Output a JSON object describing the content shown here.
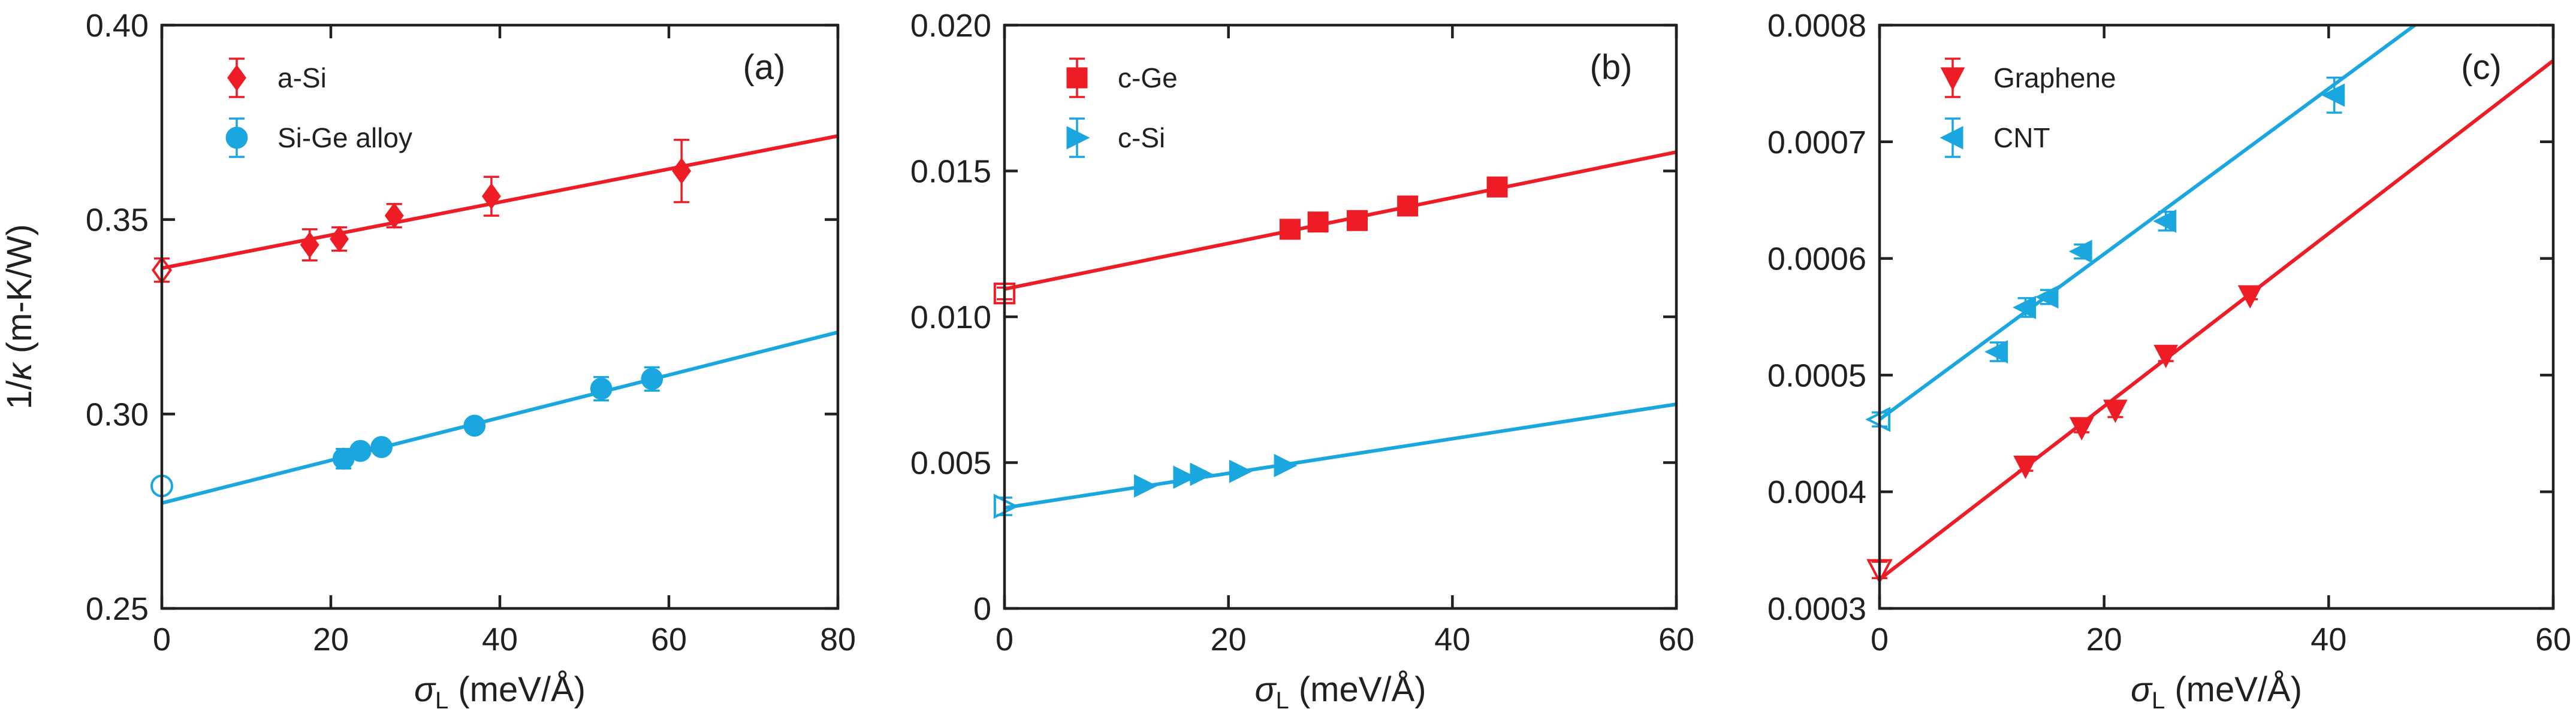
{
  "colors": {
    "red": "#ee1c25",
    "blue": "#1aa7e0",
    "axis": "#231f20"
  },
  "chart_data": [
    {
      "type": "scatter",
      "panel_label": "(a)",
      "xlabel_symbol": "σ",
      "xlabel_sub": "L",
      "xlabel_unit": " (meV/Å)",
      "ylabel_prefix": "1/",
      "ylabel_symbol": "κ",
      "ylabel_unit": " (m-K/W)",
      "xlim": [
        0,
        80
      ],
      "ylim": [
        0.25,
        0.4
      ],
      "xticks": [
        0,
        20,
        40,
        60,
        80
      ],
      "xtick_labels": [
        "0",
        "20",
        "40",
        "60",
        "80"
      ],
      "yticks": [
        0.25,
        0.3,
        0.35,
        0.4
      ],
      "ytick_labels": [
        "0.25",
        "0.30",
        "0.35",
        "0.40"
      ],
      "legend_position": "top-left",
      "series": [
        {
          "name": "a-Si",
          "color": "red",
          "marker": "diamond",
          "x": [
            17.5,
            21,
            27.5,
            39,
            61.5
          ],
          "y": [
            0.3435,
            0.345,
            0.351,
            0.356,
            0.3625
          ],
          "err": [
            0.004,
            0.003,
            0.003,
            0.005,
            0.008
          ],
          "fit": {
            "slope": 0.000425,
            "intercept": 0.3375
          },
          "intercept_point": {
            "x": 0,
            "y": 0.337,
            "err": 0.003
          }
        },
        {
          "name": "Si-Ge alloy",
          "color": "blue",
          "marker": "circle",
          "x": [
            21.5,
            23.5,
            26,
            37,
            52,
            58
          ],
          "y": [
            0.2885,
            0.2905,
            0.2915,
            0.297,
            0.3065,
            0.309
          ],
          "err": [
            0.0025,
            0.0015,
            0.0015,
            0.0015,
            0.003,
            0.003
          ],
          "fit": {
            "slope": 0.000549,
            "intercept": 0.2771
          },
          "intercept_point": {
            "x": 0,
            "y": 0.2815,
            "err": 0
          }
        }
      ]
    },
    {
      "type": "scatter",
      "panel_label": "(b)",
      "xlabel_symbol": "σ",
      "xlabel_sub": "L",
      "xlabel_unit": " (meV/Å)",
      "xlim": [
        0,
        60
      ],
      "ylim": [
        0,
        0.02
      ],
      "xticks": [
        0,
        20,
        40,
        60
      ],
      "xtick_labels": [
        "0",
        "20",
        "40",
        "60"
      ],
      "yticks": [
        0,
        0.005,
        0.01,
        0.015,
        0.02
      ],
      "ytick_labels": [
        "0",
        "0.005",
        "0.010",
        "0.015",
        "0.020"
      ],
      "legend_position": "top-left",
      "series": [
        {
          "name": "c-Ge",
          "color": "red",
          "marker": "square",
          "x": [
            25.5,
            28,
            31.5,
            36,
            44
          ],
          "y": [
            0.013,
            0.01325,
            0.0133,
            0.0138,
            0.01445
          ],
          "err": [
            0,
            0,
            0,
            0,
            0
          ],
          "fit": {
            "slope": 7.83e-05,
            "intercept": 0.01095
          },
          "intercept_point": {
            "x": 0,
            "y": 0.0108,
            "err": 0.0002
          }
        },
        {
          "name": "c-Si",
          "color": "blue",
          "marker": "triangle-right",
          "x": [
            12.5,
            16,
            17.5,
            21,
            25
          ],
          "y": [
            0.0042,
            0.0045,
            0.0046,
            0.0047,
            0.0049
          ],
          "err": [
            0,
            0,
            0,
            0,
            0
          ],
          "fit": {
            "slope": 5.92e-05,
            "intercept": 0.00345
          },
          "intercept_point": {
            "x": 0,
            "y": 0.0035,
            "err": 0.0003
          }
        }
      ]
    },
    {
      "type": "scatter",
      "panel_label": "(c)",
      "xlabel_symbol": "σ",
      "xlabel_sub": "L",
      "xlabel_unit": " (meV/Å)",
      "xlim": [
        0,
        60
      ],
      "ylim": [
        0.0003,
        0.0008
      ],
      "xticks": [
        0,
        20,
        40,
        60
      ],
      "xtick_labels": [
        "0",
        "20",
        "40",
        "60"
      ],
      "yticks": [
        0.0003,
        0.0004,
        0.0005,
        0.0006,
        0.0007,
        0.0008
      ],
      "ytick_labels": [
        "0.0003",
        "0.0004",
        "0.0005",
        "0.0006",
        "0.0007",
        "0.0008"
      ],
      "legend_position": "top-left",
      "series": [
        {
          "name": "Graphene",
          "color": "red",
          "marker": "triangle-down",
          "x": [
            13,
            18,
            21,
            25.5,
            33
          ],
          "y": [
            0.000422,
            0.000455,
            0.00047,
            0.000517,
            0.000568
          ],
          "err": [
            4e-06,
            4e-06,
            6e-06,
            5e-06,
            3e-06
          ],
          "fit": {
            "slope": 7.41e-06,
            "intercept": 0.000325
          },
          "intercept_point": {
            "x": 0,
            "y": 0.000333,
            "err": 7e-06
          }
        },
        {
          "name": "CNT",
          "color": "blue",
          "marker": "triangle-left",
          "x": [
            10.5,
            13,
            15,
            18,
            25.5,
            40.5
          ],
          "y": [
            0.00052,
            0.000558,
            0.000567,
            0.000606,
            0.000632,
            0.00074
          ],
          "err": [
            8e-06,
            8e-06,
            6e-06,
            6e-06,
            8e-06,
            1.5e-05
          ],
          "fit": {
            "slope": 7.09e-06,
            "intercept": 0.000462
          },
          "intercept_point": {
            "x": 0,
            "y": 0.000462,
            "err": 6e-06
          }
        }
      ]
    }
  ]
}
